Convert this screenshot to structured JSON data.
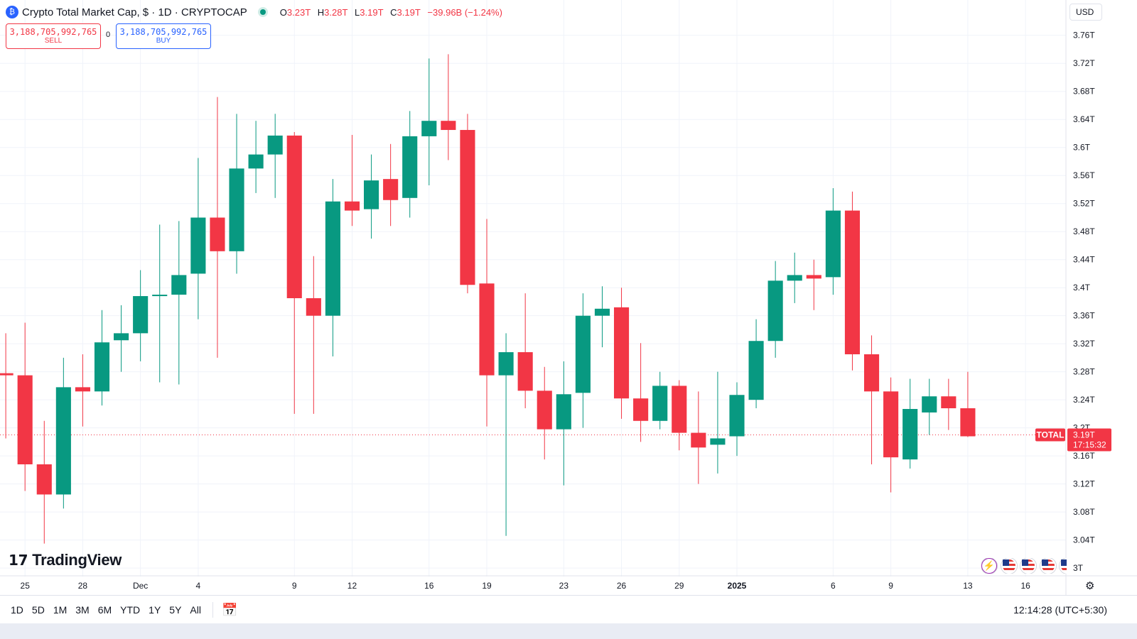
{
  "legend": {
    "logo_glyph": "₿",
    "title": "Crypto Total Market Cap, $ · 1D · CRYPTOCAP",
    "ohlc": {
      "o_label": "O",
      "o": "3.23T",
      "h_label": "H",
      "h": "3.28T",
      "l_label": "L",
      "l": "3.19T",
      "c_label": "C",
      "c": "3.19T",
      "change": "−39.96B (−1.24%)"
    }
  },
  "trade": {
    "sell_price": "3,188,705,992,765",
    "sell_label": "SELL",
    "spread": "0",
    "buy_price": "3,188,705,992,765",
    "buy_label": "BUY"
  },
  "currency": "USD",
  "watermark": "TradingView",
  "price_label": {
    "symbol": "TOTAL",
    "price": "3.19T",
    "countdown": "17:15:32"
  },
  "bottom": {
    "ranges": [
      "1D",
      "5D",
      "1M",
      "3M",
      "6M",
      "YTD",
      "1Y",
      "5Y",
      "All"
    ],
    "time": "12:14:28 (UTC+5:30)"
  },
  "icons": {
    "event": "lightning-icon",
    "flags": [
      "us-flag-icon",
      "us-flag-icon",
      "us-flag-icon",
      "us-flag-icon"
    ],
    "settings": "gear-icon",
    "calendar": "calendar-icon"
  },
  "colors": {
    "up": "#089981",
    "down": "#f23645",
    "accent": "#2962ff",
    "grid": "#f0f3fa"
  },
  "chart_data": {
    "type": "candlestick",
    "y_ticks": [
      "3.76T",
      "3.72T",
      "3.68T",
      "3.64T",
      "3.6T",
      "3.56T",
      "3.52T",
      "3.48T",
      "3.44T",
      "3.4T",
      "3.36T",
      "3.32T",
      "3.28T",
      "3.24T",
      "3.2T",
      "3.16T",
      "3.12T",
      "3.08T",
      "3.04T",
      "3T"
    ],
    "y_tick_values": [
      3.76,
      3.72,
      3.68,
      3.64,
      3.6,
      3.56,
      3.52,
      3.48,
      3.44,
      3.4,
      3.36,
      3.32,
      3.28,
      3.24,
      3.2,
      3.16,
      3.12,
      3.08,
      3.04,
      3.0
    ],
    "ylim": [
      2.99,
      3.78
    ],
    "x_ticks": [
      {
        "label": "25",
        "index": 1
      },
      {
        "label": "28",
        "index": 4
      },
      {
        "label": "Dec",
        "index": 7
      },
      {
        "label": "4",
        "index": 10
      },
      {
        "label": "9",
        "index": 15
      },
      {
        "label": "12",
        "index": 18
      },
      {
        "label": "16",
        "index": 22
      },
      {
        "label": "19",
        "index": 25
      },
      {
        "label": "23",
        "index": 29
      },
      {
        "label": "26",
        "index": 32
      },
      {
        "label": "29",
        "index": 35
      },
      {
        "label": "2025",
        "index": 38,
        "bold": true
      },
      {
        "label": "6",
        "index": 43
      },
      {
        "label": "9",
        "index": 46
      },
      {
        "label": "13",
        "index": 50
      },
      {
        "label": "16",
        "index": 53
      }
    ],
    "x_range": [
      -0.3,
      55.1
    ],
    "last_price": 3.19,
    "candles": [
      {
        "o": 3.278,
        "h": 3.335,
        "l": 3.185,
        "c": 3.275
      },
      {
        "o": 3.275,
        "h": 3.35,
        "l": 3.11,
        "c": 3.148
      },
      {
        "o": 3.148,
        "h": 3.21,
        "l": 3.035,
        "c": 3.105
      },
      {
        "o": 3.105,
        "h": 3.3,
        "l": 3.085,
        "c": 3.258
      },
      {
        "o": 3.258,
        "h": 3.305,
        "l": 3.202,
        "c": 3.252
      },
      {
        "o": 3.252,
        "h": 3.368,
        "l": 3.232,
        "c": 3.322
      },
      {
        "o": 3.325,
        "h": 3.375,
        "l": 3.28,
        "c": 3.335
      },
      {
        "o": 3.335,
        "h": 3.425,
        "l": 3.295,
        "c": 3.388
      },
      {
        "o": 3.388,
        "h": 3.49,
        "l": 3.265,
        "c": 3.39
      },
      {
        "o": 3.39,
        "h": 3.495,
        "l": 3.262,
        "c": 3.418
      },
      {
        "o": 3.42,
        "h": 3.585,
        "l": 3.355,
        "c": 3.5
      },
      {
        "o": 3.5,
        "h": 3.672,
        "l": 3.3,
        "c": 3.452
      },
      {
        "o": 3.452,
        "h": 3.648,
        "l": 3.42,
        "c": 3.57
      },
      {
        "o": 3.57,
        "h": 3.638,
        "l": 3.535,
        "c": 3.59
      },
      {
        "o": 3.59,
        "h": 3.648,
        "l": 3.528,
        "c": 3.617
      },
      {
        "o": 3.617,
        "h": 3.622,
        "l": 3.22,
        "c": 3.385
      },
      {
        "o": 3.385,
        "h": 3.445,
        "l": 3.22,
        "c": 3.36
      },
      {
        "o": 3.36,
        "h": 3.555,
        "l": 3.302,
        "c": 3.523
      },
      {
        "o": 3.523,
        "h": 3.618,
        "l": 3.488,
        "c": 3.51
      },
      {
        "o": 3.512,
        "h": 3.59,
        "l": 3.47,
        "c": 3.553
      },
      {
        "o": 3.555,
        "h": 3.605,
        "l": 3.488,
        "c": 3.525
      },
      {
        "o": 3.528,
        "h": 3.652,
        "l": 3.5,
        "c": 3.616
      },
      {
        "o": 3.616,
        "h": 3.727,
        "l": 3.546,
        "c": 3.638
      },
      {
        "o": 3.638,
        "h": 3.733,
        "l": 3.582,
        "c": 3.625
      },
      {
        "o": 3.625,
        "h": 3.648,
        "l": 3.392,
        "c": 3.404
      },
      {
        "o": 3.406,
        "h": 3.498,
        "l": 3.202,
        "c": 3.275
      },
      {
        "o": 3.275,
        "h": 3.335,
        "l": 3.046,
        "c": 3.308
      },
      {
        "o": 3.308,
        "h": 3.392,
        "l": 3.228,
        "c": 3.253
      },
      {
        "o": 3.253,
        "h": 3.287,
        "l": 3.155,
        "c": 3.198
      },
      {
        "o": 3.198,
        "h": 3.295,
        "l": 3.118,
        "c": 3.248
      },
      {
        "o": 3.25,
        "h": 3.392,
        "l": 3.2,
        "c": 3.36
      },
      {
        "o": 3.36,
        "h": 3.402,
        "l": 3.315,
        "c": 3.37
      },
      {
        "o": 3.372,
        "h": 3.4,
        "l": 3.213,
        "c": 3.242
      },
      {
        "o": 3.242,
        "h": 3.321,
        "l": 3.18,
        "c": 3.21
      },
      {
        "o": 3.21,
        "h": 3.28,
        "l": 3.198,
        "c": 3.26
      },
      {
        "o": 3.26,
        "h": 3.268,
        "l": 3.168,
        "c": 3.193
      },
      {
        "o": 3.193,
        "h": 3.252,
        "l": 3.12,
        "c": 3.172
      },
      {
        "o": 3.176,
        "h": 3.28,
        "l": 3.135,
        "c": 3.185
      },
      {
        "o": 3.188,
        "h": 3.265,
        "l": 3.16,
        "c": 3.247
      },
      {
        "o": 3.24,
        "h": 3.355,
        "l": 3.228,
        "c": 3.324
      },
      {
        "o": 3.324,
        "h": 3.438,
        "l": 3.3,
        "c": 3.41
      },
      {
        "o": 3.41,
        "h": 3.45,
        "l": 3.378,
        "c": 3.418
      },
      {
        "o": 3.418,
        "h": 3.44,
        "l": 3.368,
        "c": 3.413
      },
      {
        "o": 3.415,
        "h": 3.542,
        "l": 3.39,
        "c": 3.51
      },
      {
        "o": 3.51,
        "h": 3.537,
        "l": 3.282,
        "c": 3.305
      },
      {
        "o": 3.305,
        "h": 3.332,
        "l": 3.148,
        "c": 3.252
      },
      {
        "o": 3.252,
        "h": 3.272,
        "l": 3.108,
        "c": 3.158
      },
      {
        "o": 3.155,
        "h": 3.27,
        "l": 3.142,
        "c": 3.227
      },
      {
        "o": 3.222,
        "h": 3.27,
        "l": 3.19,
        "c": 3.245
      },
      {
        "o": 3.245,
        "h": 3.27,
        "l": 3.197,
        "c": 3.228
      },
      {
        "o": 3.228,
        "h": 3.28,
        "l": 3.187,
        "c": 3.188
      }
    ]
  }
}
